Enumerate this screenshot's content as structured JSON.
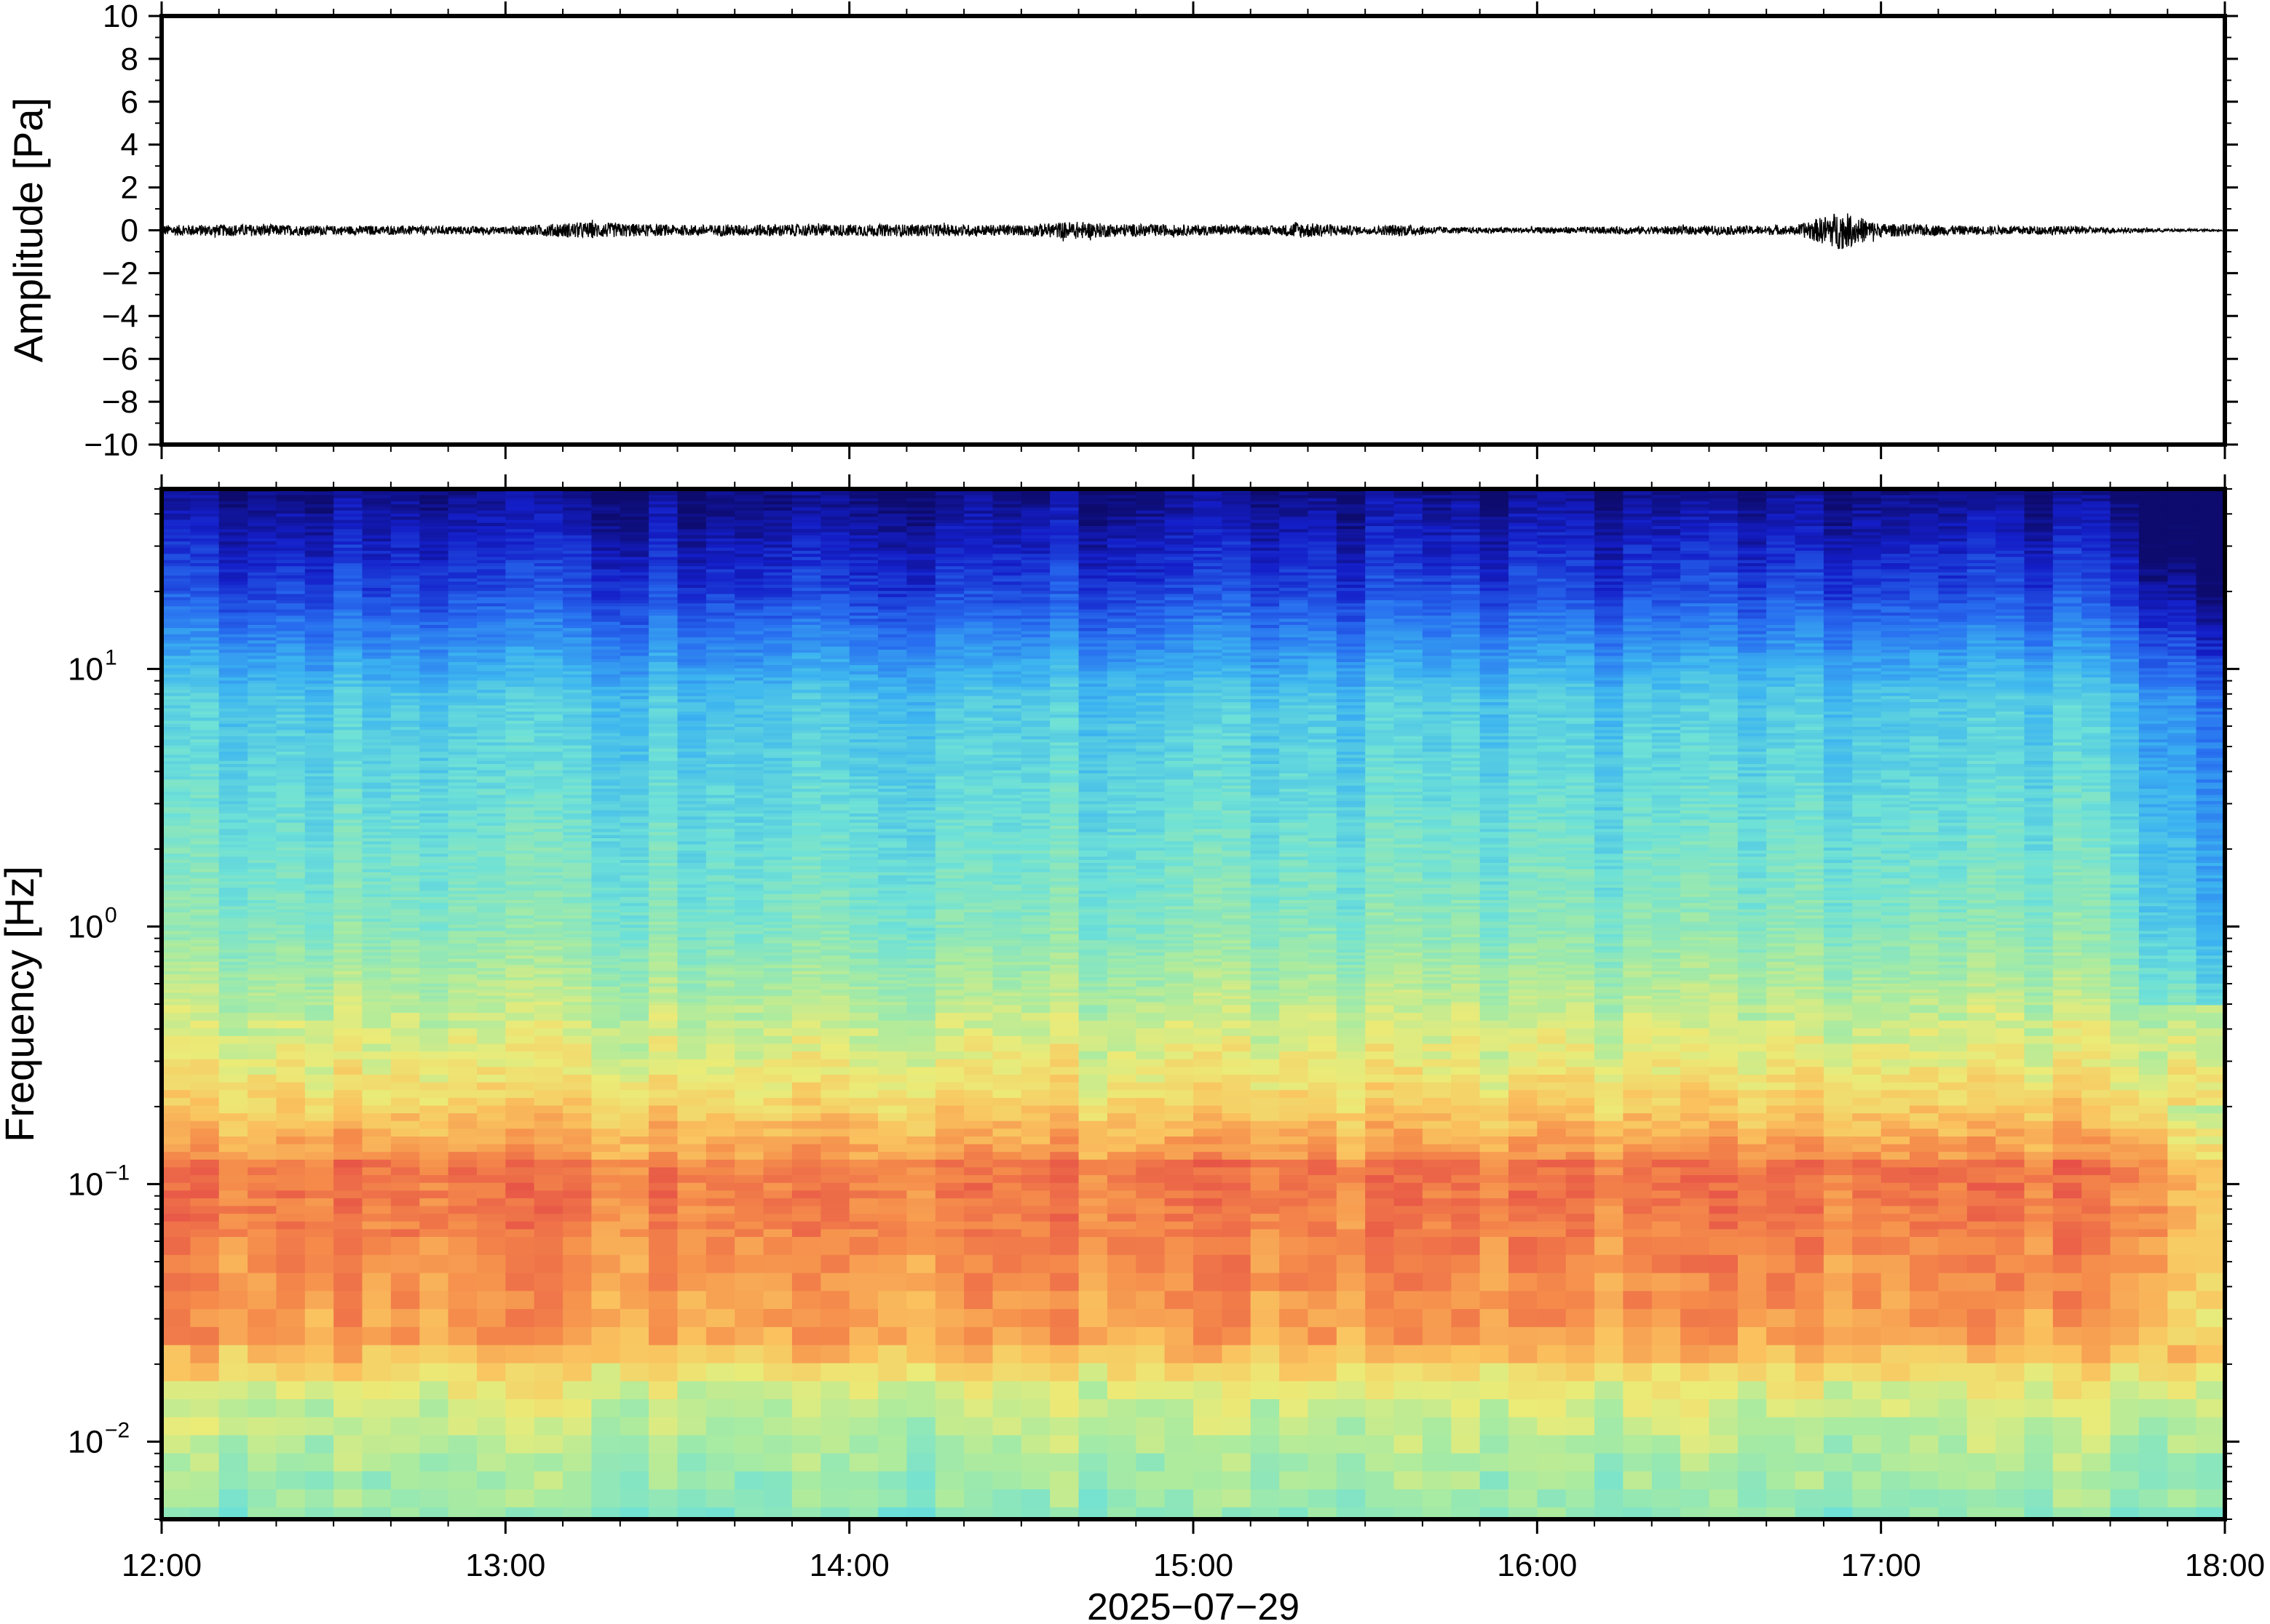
{
  "chart_data": [
    {
      "type": "line",
      "ylabel": "Amplitude [Pa]",
      "ylim": [
        -10,
        10
      ],
      "y_ticks": [
        "10",
        "8",
        "6",
        "4",
        "2",
        "0",
        "−2",
        "−4",
        "−6",
        "−8",
        "−10"
      ],
      "y_tick_values": [
        10,
        8,
        6,
        4,
        2,
        0,
        -2,
        -4,
        -6,
        -8,
        -10
      ],
      "x_range": [
        "12:00",
        "18:00"
      ],
      "series": [
        {
          "description_only_visible": true,
          "color": "#000000",
          "envelope_time_hours": [
            12.0,
            12.25,
            12.5,
            12.75,
            13.0,
            13.22,
            13.5,
            13.75,
            14.0,
            14.25,
            14.5,
            14.65,
            14.75,
            15.0,
            15.25,
            15.3,
            15.5,
            15.6,
            15.75,
            16.0,
            16.25,
            16.5,
            16.75,
            16.88,
            17.0,
            17.25,
            17.5,
            17.75,
            18.0
          ],
          "envelope_amplitude_pa": [
            0.35,
            0.4,
            0.3,
            0.3,
            0.25,
            0.55,
            0.35,
            0.4,
            0.4,
            0.4,
            0.35,
            0.6,
            0.45,
            0.35,
            0.3,
            0.55,
            0.25,
            0.4,
            0.2,
            0.2,
            0.25,
            0.3,
            0.3,
            1.3,
            0.45,
            0.3,
            0.3,
            0.15,
            0.05
          ]
        }
      ]
    },
    {
      "type": "heatmap",
      "ylabel": "Frequency [Hz]",
      "xlabel": "2025−07−29",
      "y_scale": "log",
      "ylim_hz": [
        0.005,
        50
      ],
      "y_major_ticks": [
        {
          "base": "10",
          "exp": "1",
          "value": 10
        },
        {
          "base": "10",
          "exp": "0",
          "value": 1
        },
        {
          "base": "10",
          "exp": "−1",
          "value": 0.1
        },
        {
          "base": "10",
          "exp": "−2",
          "value": 0.01
        }
      ],
      "x_ticks": [
        "12:00",
        "13:00",
        "14:00",
        "15:00",
        "16:00",
        "17:00",
        "18:00"
      ],
      "x_tick_hours": [
        12,
        13,
        14,
        15,
        16,
        17,
        18
      ],
      "colormap": "jet-like",
      "colors": {
        "low": "#0d0b6e",
        "mid_low": "#2f7fe8",
        "mid": "#7fe0c8",
        "mid_high": "#e8e87a",
        "high": "#e85a4a"
      },
      "dominant_band_hz": [
        0.03,
        0.12
      ],
      "notes_visible": "High energy (red/orange) around 0.03–0.12 Hz, decreasing energy toward higher frequencies (blue above ~10 Hz)"
    }
  ]
}
